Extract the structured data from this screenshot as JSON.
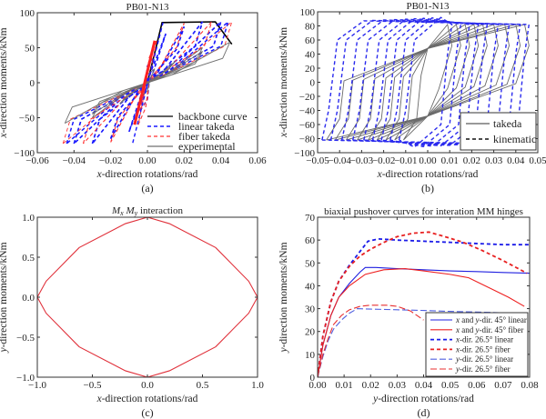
{
  "chart_data": [
    {
      "id": "a",
      "type": "line",
      "title": "PB01-N13",
      "caption": "(a)",
      "xlabel_italic": "x",
      "xlabel_rest": "-direction rotations/rad",
      "ylabel_italic": "x",
      "ylabel_rest": "-direction moments/kNm",
      "xlim": [
        -0.06,
        0.06
      ],
      "ylim": [
        -100,
        100
      ],
      "xticks": [
        -0.06,
        -0.04,
        -0.02,
        0.0,
        0.02,
        0.04,
        0.06
      ],
      "xtick_labels": [
        "-0.06",
        "-0.04",
        "-0.02",
        "0.00",
        "0.02",
        "0.04",
        "0.06"
      ],
      "yticks": [
        -100,
        -50,
        0,
        50,
        100
      ],
      "ytick_labels": [
        "-100",
        "-50",
        "0",
        "50",
        "100"
      ],
      "legend_position": "bottom-right",
      "series": [
        {
          "name": "backbone curve",
          "color": "#000000",
          "style": "solid",
          "x": [
            0.0,
            0.008,
            0.037,
            0.046
          ],
          "y": [
            0,
            86,
            87,
            55
          ]
        },
        {
          "name": "linear takeda",
          "color": "#1a1aff",
          "style": "dash",
          "x": [
            -0.045,
            -0.04,
            -0.03,
            -0.02,
            -0.01,
            0.0,
            0.01,
            0.02,
            0.03,
            0.04,
            0.044
          ],
          "y": [
            -82,
            -75,
            -70,
            -60,
            -50,
            0,
            50,
            60,
            70,
            80,
            85
          ]
        },
        {
          "name": "fiber takeda",
          "color": "#ff3030",
          "style": "dash",
          "x": [
            -0.047,
            -0.035,
            -0.02,
            -0.005,
            0.0,
            0.005,
            0.02,
            0.035,
            0.046
          ],
          "y": [
            -83,
            -78,
            -65,
            -40,
            0,
            40,
            65,
            78,
            83
          ]
        },
        {
          "name": "experimental",
          "color": "#707070",
          "style": "solid",
          "x": [
            -0.046,
            -0.03,
            -0.015,
            0.0,
            0.015,
            0.03,
            0.045
          ],
          "y": [
            -65,
            -50,
            -30,
            0,
            30,
            45,
            58
          ]
        }
      ]
    },
    {
      "id": "b",
      "type": "line",
      "title": "PB01-N13",
      "caption": "(b)",
      "xlabel_italic": "x",
      "xlabel_rest": "-direction rotations/rad",
      "ylabel_italic": "x",
      "ylabel_rest": "-direction moments/kNm",
      "xlim": [
        -0.05,
        0.05
      ],
      "ylim": [
        -100,
        100
      ],
      "xticks": [
        -0.05,
        -0.04,
        -0.03,
        -0.02,
        -0.01,
        0.0,
        0.01,
        0.02,
        0.03,
        0.04,
        0.05
      ],
      "xtick_labels": [
        "-0.05",
        "-0.04",
        "-0.03",
        "-0.02",
        "-0.01",
        "0.00",
        "0.01",
        "0.02",
        "0.03",
        "0.04",
        "0.05"
      ],
      "yticks": [
        -100,
        -80,
        -60,
        -40,
        -20,
        0,
        20,
        40,
        60,
        80,
        100
      ],
      "ytick_labels": [
        "-100",
        "-80",
        "-60",
        "-40",
        "-20",
        "0",
        "20",
        "40",
        "60",
        "80",
        "100"
      ],
      "legend_position": "bottom-right",
      "amplitudes": [
        0.009,
        0.013,
        0.017,
        0.021,
        0.025,
        0.03,
        0.035,
        0.04,
        0.044
      ],
      "series": [
        {
          "name": "takeda",
          "color": "#6a6a6a",
          "style": "solid",
          "peak_moment": 82,
          "pinch_point": [
            0.0,
            48
          ]
        },
        {
          "name": "kinematic",
          "color": "#2a2aee",
          "style": "dash",
          "peak_moment": 95,
          "hardening_slope": -250
        }
      ]
    },
    {
      "id": "c",
      "type": "line",
      "title_parts": [
        "M",
        "x",
        " M",
        "y",
        " interaction"
      ],
      "caption": "(c)",
      "xlabel_italic": "x",
      "xlabel_rest": "-direction rotations/rad",
      "ylabel_italic": "y",
      "ylabel_rest": "-direction moments/kNm",
      "xlim": [
        -1.0,
        1.0
      ],
      "ylim": [
        -1.0,
        1.0
      ],
      "xticks": [
        -1.0,
        -0.5,
        0.0,
        0.5,
        1.0
      ],
      "xtick_labels": [
        "-1.0",
        "-0.5",
        "0.0",
        "0.5",
        "1.0"
      ],
      "yticks": [
        -1.0,
        -0.5,
        0.0,
        0.5,
        1.0
      ],
      "ytick_labels": [
        "-1.0",
        "-0.5",
        "0.0",
        "0.5",
        "1.0"
      ],
      "series": [
        {
          "name": "interaction surface",
          "color": "#e0303a",
          "style": "solid",
          "x": [
            1.0,
            0.92,
            0.62,
            0.2,
            0.0,
            -0.2,
            -0.62,
            -0.92,
            -1.0,
            -0.92,
            -0.62,
            -0.2,
            0.0,
            0.2,
            0.62,
            0.92,
            1.0
          ],
          "y": [
            0.0,
            0.2,
            0.62,
            0.92,
            1.0,
            0.92,
            0.62,
            0.2,
            0.0,
            -0.2,
            -0.62,
            -0.92,
            -1.0,
            -0.92,
            -0.62,
            -0.2,
            0.0
          ]
        }
      ]
    },
    {
      "id": "d",
      "type": "line",
      "title": "biaxial pushover curves for interation MM hinges",
      "caption": "(d)",
      "xlabel_italic": "y",
      "xlabel_rest": "-direction rotations/rad",
      "ylabel_italic": "y",
      "ylabel_rest": "-direction moments/kNm",
      "xlim": [
        0.0,
        0.08
      ],
      "ylim": [
        0,
        70
      ],
      "xticks": [
        0.0,
        0.01,
        0.02,
        0.03,
        0.04,
        0.05,
        0.06,
        0.07,
        0.08
      ],
      "xtick_labels": [
        "0.00",
        "0.01",
        "0.02",
        "0.03",
        "0.04",
        "0.05",
        "0.06",
        "0.07",
        "0.08"
      ],
      "yticks": [
        0,
        10,
        20,
        30,
        40,
        50,
        60,
        70
      ],
      "ytick_labels": [
        "0",
        "10",
        "20",
        "30",
        "40",
        "50",
        "60",
        "70"
      ],
      "legend_position": "bottom-right",
      "series": [
        {
          "name_italic": "x",
          "name_rest": " and ",
          "name_italic2": "y",
          "name_tail": "-dir. 45° linear",
          "color": "#2020e0",
          "style": "solid",
          "x": [
            0.0,
            0.002,
            0.005,
            0.008,
            0.012,
            0.016,
            0.018,
            0.022,
            0.03,
            0.04,
            0.05,
            0.06,
            0.07,
            0.08
          ],
          "y": [
            0,
            14,
            27,
            35,
            41,
            46,
            48,
            48,
            47.5,
            47,
            46.5,
            46.2,
            45.8,
            45.5
          ]
        },
        {
          "name_italic": "x",
          "name_rest": " and ",
          "name_italic2": "y",
          "name_tail": "-dir. 45° fiber",
          "color": "#ee2020",
          "style": "solid",
          "x": [
            0.0,
            0.002,
            0.005,
            0.008,
            0.012,
            0.018,
            0.025,
            0.033,
            0.04,
            0.05,
            0.057,
            0.065,
            0.072,
            0.078
          ],
          "y": [
            0,
            14,
            27,
            35,
            40,
            45,
            47,
            47.5,
            46.5,
            45,
            43.5,
            39,
            35,
            31
          ]
        },
        {
          "name_italic": "x",
          "name_rest": "-dir. 26.5° linear",
          "name_italic2": "",
          "name_tail": "",
          "color": "#1a1ae8",
          "style": "dash",
          "x": [
            0.0,
            0.002,
            0.005,
            0.008,
            0.012,
            0.016,
            0.019,
            0.023,
            0.03,
            0.04,
            0.05,
            0.06,
            0.07,
            0.08
          ],
          "y": [
            0,
            18,
            33,
            42,
            49,
            55,
            59.5,
            60.5,
            60,
            59.5,
            59,
            58.5,
            58,
            58
          ]
        },
        {
          "name_italic": "x",
          "name_rest": "-dir. 26.5° fiber",
          "name_italic2": "",
          "name_tail": "",
          "color": "#e82020",
          "style": "dash",
          "x": [
            0.0,
            0.002,
            0.005,
            0.008,
            0.012,
            0.016,
            0.02,
            0.025,
            0.03,
            0.036,
            0.042,
            0.048,
            0.055,
            0.062,
            0.07,
            0.079
          ],
          "y": [
            0,
            18,
            33,
            42,
            48.5,
            53,
            56,
            59,
            61.5,
            63,
            63.5,
            61.5,
            59,
            55.5,
            51,
            45.5
          ]
        },
        {
          "name_italic": "y",
          "name_rest": "-dir. 26.5° linear",
          "name_italic2": "",
          "name_tail": "",
          "color": "#5060e0",
          "style": "longdash",
          "x": [
            0.0,
            0.002,
            0.004,
            0.006,
            0.009,
            0.012,
            0.015,
            0.02,
            0.03,
            0.04,
            0.05,
            0.06,
            0.07,
            0.08
          ],
          "y": [
            0,
            9,
            16,
            21,
            25,
            28,
            30,
            29.8,
            29.5,
            29.2,
            28.8,
            28.5,
            28.2,
            28
          ]
        },
        {
          "name_italic": "y",
          "name_rest": "-dir. 26.5° fiber",
          "name_italic2": "",
          "name_tail": "",
          "color": "#e83030",
          "style": "longdash",
          "x": [
            0.0,
            0.002,
            0.004,
            0.006,
            0.009,
            0.012,
            0.016,
            0.02,
            0.026,
            0.03,
            0.035,
            0.04
          ],
          "y": [
            0,
            10,
            17,
            23,
            27,
            29.5,
            31,
            31.5,
            31.5,
            31,
            29,
            25
          ]
        }
      ]
    }
  ]
}
